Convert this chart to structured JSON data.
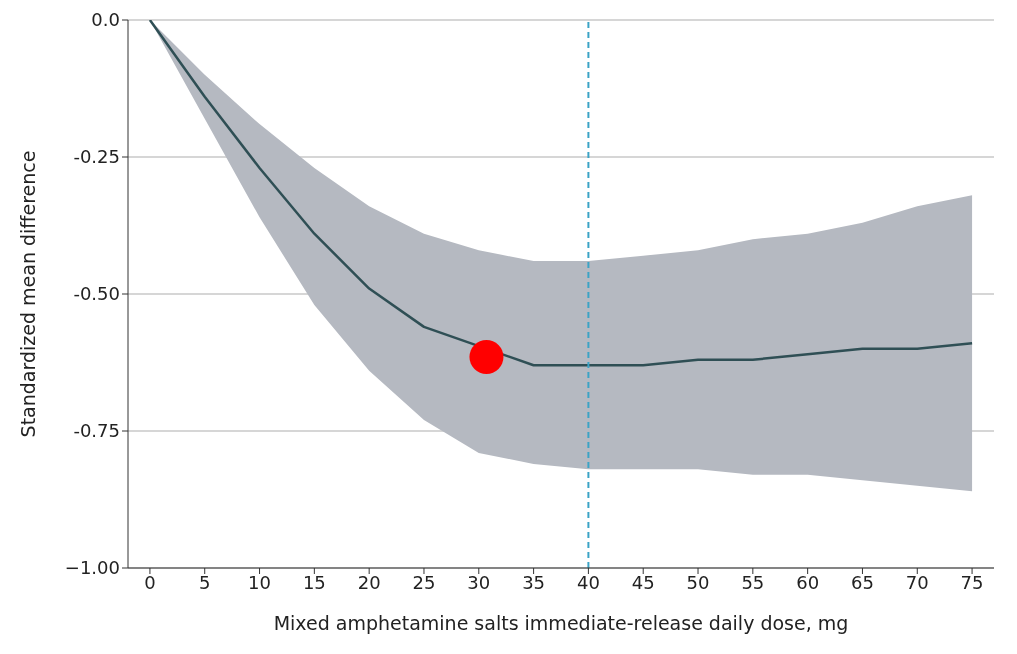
{
  "chart_data": {
    "type": "line",
    "xlabel": "Mixed amphetamine salts immediate-release daily dose, mg",
    "ylabel": "Standardized mean difference",
    "x": [
      0,
      5,
      10,
      15,
      20,
      25,
      30,
      35,
      40,
      45,
      50,
      55,
      60,
      65,
      70,
      75
    ],
    "series": [
      {
        "color": "#2f4f55",
        "values": [
          0,
          -0.14,
          -0.27,
          -0.39,
          -0.49,
          -0.56,
          null,
          -0.63,
          -0.63,
          -0.63,
          -0.62,
          -0.62,
          -0.61,
          -0.6,
          -0.6,
          -0.59
        ],
        "lower": [
          0,
          -0.18,
          -0.36,
          -0.52,
          -0.64,
          -0.73,
          -0.79,
          -0.81,
          -0.82,
          -0.82,
          -0.82,
          -0.83,
          -0.83,
          -0.84,
          -0.85,
          -0.86
        ],
        "upper": [
          0,
          -0.1,
          -0.19,
          -0.27,
          -0.34,
          -0.39,
          -0.42,
          -0.44,
          -0.44,
          -0.43,
          -0.42,
          -0.4,
          -0.39,
          -0.37,
          -0.34,
          -0.32
        ]
      },
      {
        "type": "scatter",
        "marker": "circle",
        "color": "#ff0000",
        "x": [
          30.7
        ],
        "values": [
          -0.615
        ]
      }
    ],
    "xlim": [
      -2,
      77
    ],
    "xticks": [
      0,
      5,
      10,
      15,
      20,
      25,
      30,
      35,
      40,
      45,
      50,
      55,
      60,
      65,
      70,
      75
    ],
    "ylim": [
      -1,
      0
    ],
    "yticks": [
      {
        "value": 0,
        "label": "0.0"
      },
      -0.25,
      {
        "value": -0.5,
        "label": "-0.50"
      },
      -0.75,
      {
        "value": -1,
        "label": "−1.00"
      }
    ],
    "grid": "y",
    "marker": "none",
    "line_style": "solid",
    "ref_lines": [
      {
        "axis": "x",
        "value": 40,
        "color": "#3ba3c6",
        "line_style": "dashed"
      }
    ]
  }
}
